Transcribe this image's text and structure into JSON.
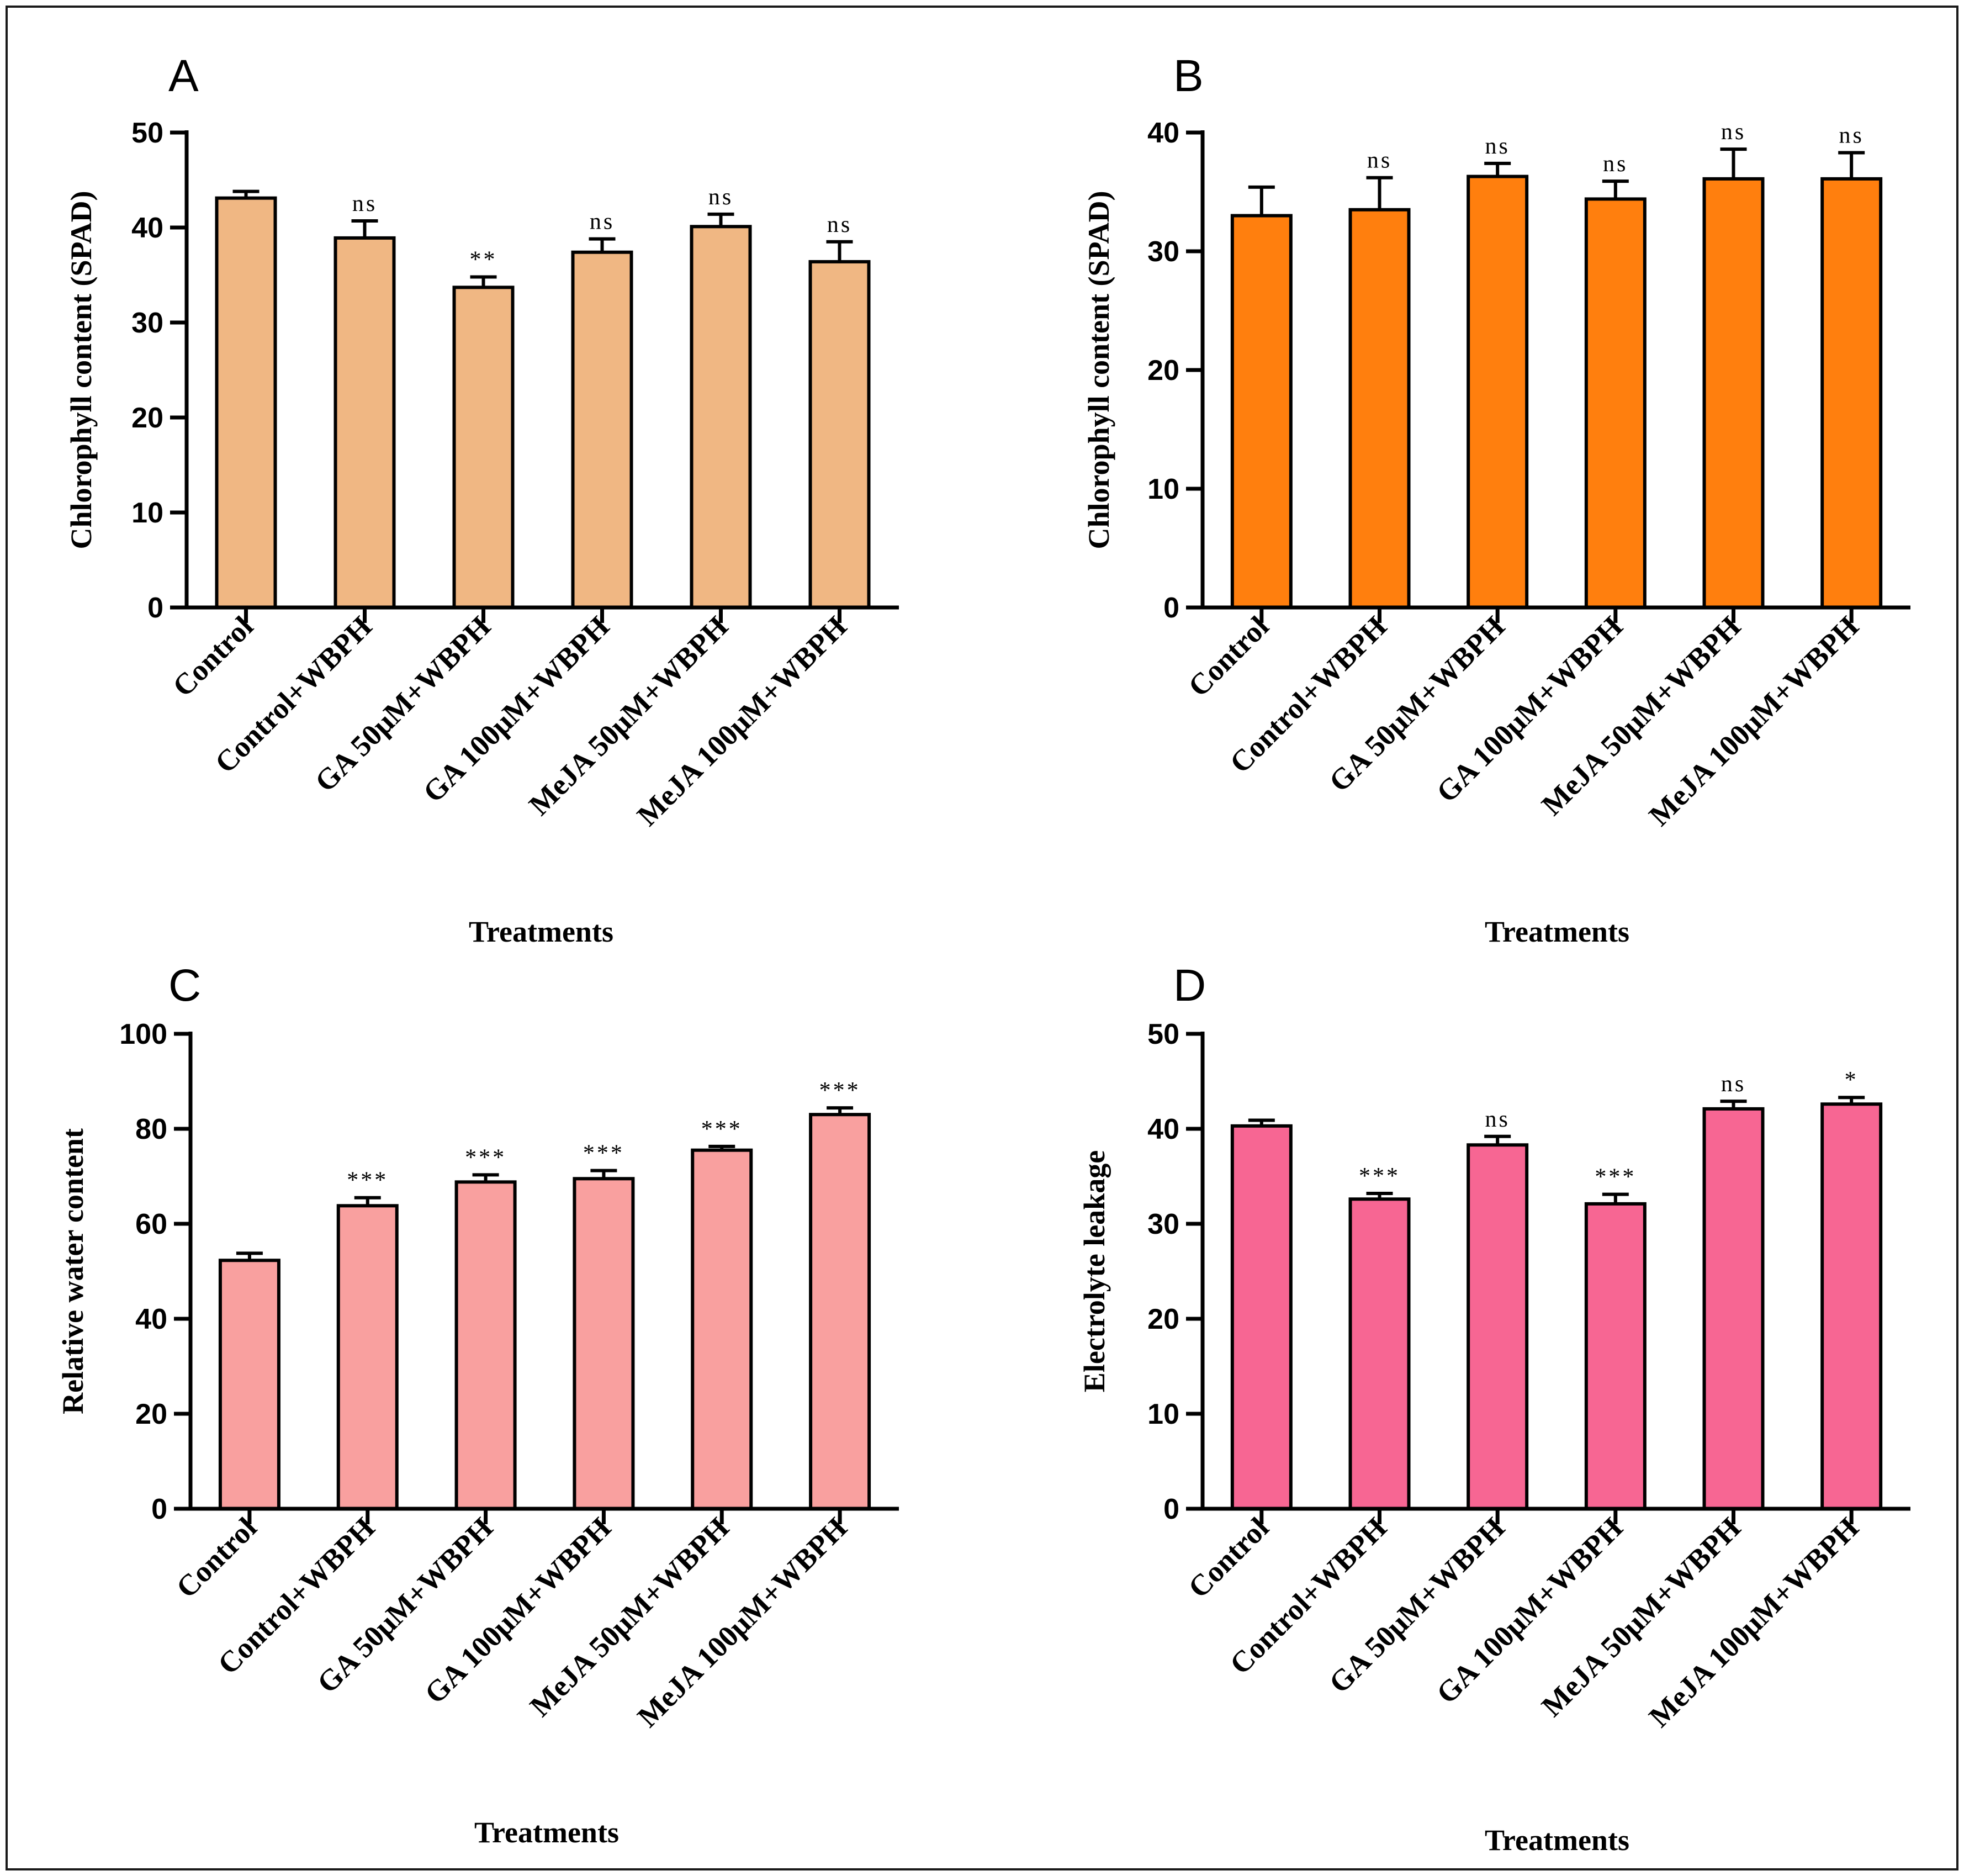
{
  "chart_data": [
    {
      "type": "bar",
      "panel_label": "A",
      "ylabel": "Chlorophyll content (SPAD)",
      "xlabel": "Treatments",
      "ylim": [
        0,
        50
      ],
      "yticks": [
        0,
        10,
        20,
        30,
        40,
        50
      ],
      "color": "#F0B783",
      "categories": [
        "Control",
        "Control+WBPH",
        "GA 50μM+WBPH",
        "GA 100μM+WBPH",
        "MeJA 50μM+WBPH",
        "MeJA 100μM+WBPH"
      ],
      "values": [
        43.1,
        38.9,
        33.7,
        37.4,
        40.1,
        36.4
      ],
      "errors": [
        0.7,
        1.8,
        1.1,
        1.4,
        1.3,
        2.1
      ],
      "significance": [
        "",
        "ns",
        "**",
        "ns",
        "ns",
        "ns"
      ]
    },
    {
      "type": "bar",
      "panel_label": "B",
      "ylabel": "Chlorophyll content (SPAD)",
      "xlabel": "Treatments",
      "ylim": [
        0,
        40
      ],
      "yticks": [
        0,
        10,
        20,
        30,
        40
      ],
      "color": "#FF7F0E",
      "categories": [
        "Control",
        "Control+WBPH",
        "GA 50μM+WBPH",
        "GA 100μM+WBPH",
        "MeJA 50μM+WBPH",
        "MeJA 100μM+WBPH"
      ],
      "values": [
        33.0,
        33.5,
        36.3,
        34.4,
        36.1,
        36.1
      ],
      "errors": [
        2.4,
        2.7,
        1.1,
        1.5,
        2.5,
        2.2
      ],
      "significance": [
        "",
        "ns",
        "ns",
        "ns",
        "ns",
        "ns"
      ]
    },
    {
      "type": "bar",
      "panel_label": "C",
      "ylabel": "Relative water content",
      "xlabel": "Treatments",
      "ylim": [
        0,
        100
      ],
      "yticks": [
        0,
        20,
        40,
        60,
        80,
        100
      ],
      "color": "#F9A09F",
      "categories": [
        "Control",
        "Control+WBPH",
        "GA 50μM+WBPH",
        "GA 100μM+WBPH",
        "MeJA 50μM+WBPH",
        "MeJA 100μM+WBPH"
      ],
      "values": [
        52.3,
        63.8,
        68.8,
        69.5,
        75.5,
        83.0
      ],
      "errors": [
        1.5,
        1.7,
        1.5,
        1.7,
        0.8,
        1.4
      ],
      "significance": [
        "",
        "***",
        "***",
        "***",
        "***",
        "***"
      ]
    },
    {
      "type": "bar",
      "panel_label": "D",
      "ylabel": "Electrolyte leakage",
      "xlabel": "Treatments",
      "ylim": [
        0,
        50
      ],
      "yticks": [
        0,
        10,
        20,
        30,
        40,
        50
      ],
      "color": "#F76693",
      "categories": [
        "Control",
        "Control+WBPH",
        "GA 50μM+WBPH",
        "GA 100μM+WBPH",
        "MeJA 50μM+WBPH",
        "MeJA 100μM+WBPH"
      ],
      "values": [
        40.3,
        32.6,
        38.3,
        32.1,
        42.1,
        42.6
      ],
      "errors": [
        0.6,
        0.6,
        0.9,
        1.0,
        0.8,
        0.7
      ],
      "significance": [
        "",
        "***",
        "ns",
        "***",
        "ns",
        "*"
      ]
    }
  ]
}
